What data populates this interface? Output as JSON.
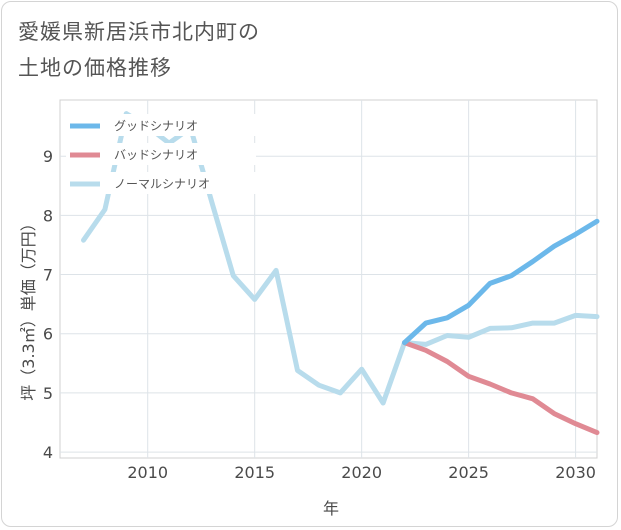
{
  "title_lines": [
    "愛媛県新居浜市北内町の",
    "土地の価格推移"
  ],
  "chart_data": {
    "type": "line",
    "title": "愛媛県新居浜市北内町の土地の価格推移",
    "xlabel": "年",
    "ylabel": "坪（3.3㎡）単価（万円）",
    "xlim": [
      2005.9,
      2031
    ],
    "ylim": [
      3.9,
      9.95
    ],
    "xticks": [
      2010,
      2015,
      2020,
      2025,
      2030
    ],
    "yticks": [
      4,
      5,
      6,
      7,
      8,
      9
    ],
    "legend_position": "top-left",
    "series": [
      {
        "name": "グッドシナリオ",
        "color": "#6cb8ea",
        "x": [
          2022,
          2023,
          2024,
          2025,
          2026,
          2027,
          2028,
          2029,
          2030,
          2031
        ],
        "y": [
          5.85,
          6.18,
          6.27,
          6.48,
          6.85,
          6.98,
          7.22,
          7.48,
          7.68,
          7.9
        ]
      },
      {
        "name": "バッドシナリオ",
        "color": "#e08a94",
        "x": [
          2022,
          2023,
          2024,
          2025,
          2026,
          2027,
          2028,
          2029,
          2030,
          2031
        ],
        "y": [
          5.85,
          5.72,
          5.53,
          5.28,
          5.15,
          5.0,
          4.9,
          4.65,
          4.48,
          4.33
        ]
      },
      {
        "name": "ノーマルシナリオ",
        "color": "#b8dcec",
        "x": [
          2007,
          2008,
          2009,
          2010,
          2011,
          2012,
          2013,
          2014,
          2015,
          2016,
          2017,
          2018,
          2019,
          2020,
          2021,
          2022,
          2023,
          2024,
          2025,
          2026,
          2027,
          2028,
          2029,
          2030,
          2031
        ],
        "y": [
          7.58,
          8.1,
          9.72,
          9.5,
          9.22,
          9.48,
          8.22,
          6.98,
          6.58,
          7.07,
          5.38,
          5.13,
          5.0,
          5.4,
          4.83,
          5.85,
          5.82,
          5.97,
          5.94,
          6.09,
          6.1,
          6.18,
          6.18,
          6.31,
          6.29
        ]
      }
    ]
  }
}
